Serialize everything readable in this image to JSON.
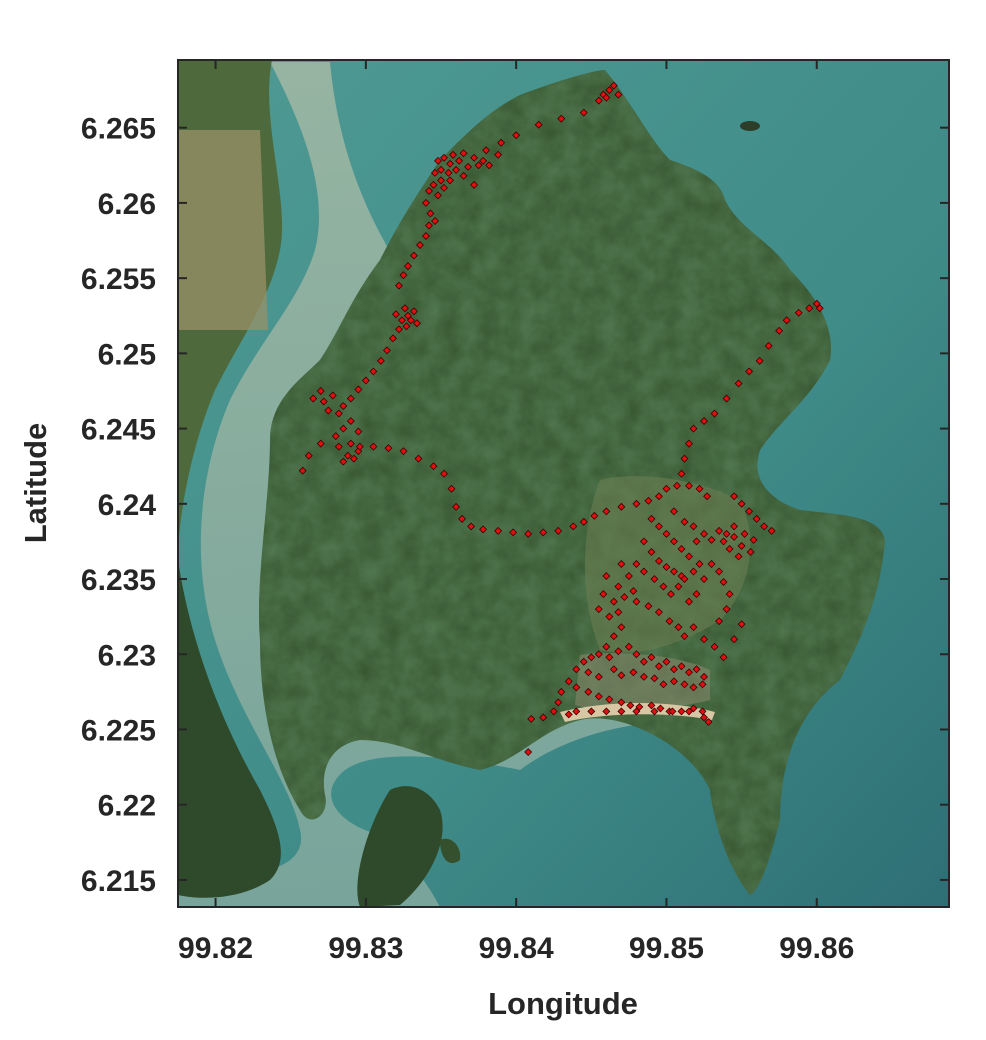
{
  "chart_data": {
    "type": "scatter",
    "title": "",
    "xlabel": "Longitude",
    "ylabel": "Latitude",
    "xlim": [
      99.8175,
      99.8688
    ],
    "ylim": [
      6.2132,
      6.2695
    ],
    "x_ticks": [
      99.82,
      99.83,
      99.84,
      99.85,
      99.86
    ],
    "x_tick_labels": [
      "99.82",
      "99.83",
      "99.84",
      "99.85",
      "99.86"
    ],
    "y_ticks": [
      6.215,
      6.22,
      6.225,
      6.23,
      6.235,
      6.24,
      6.245,
      6.25,
      6.255,
      6.26,
      6.265
    ],
    "y_tick_labels": [
      "6.215",
      "6.22",
      "6.225",
      "6.23",
      "6.235",
      "6.24",
      "6.245",
      "6.25",
      "6.255",
      "6.26",
      "6.265"
    ],
    "grid": false,
    "background": "satellite imagery",
    "marker": {
      "shape": "diamond",
      "fill": "#e01010",
      "edge": "#3a0000"
    },
    "series": [
      {
        "points": [
          [
            99.8465,
            6.2678
          ],
          [
            99.8462,
            6.2675
          ],
          [
            99.8458,
            6.2672
          ],
          [
            99.8455,
            6.2668
          ],
          [
            99.8468,
            6.2672
          ],
          [
            99.846,
            6.267
          ],
          [
            99.8445,
            6.266
          ],
          [
            99.843,
            6.2656
          ],
          [
            99.8415,
            6.2652
          ],
          [
            99.84,
            6.2645
          ],
          [
            99.839,
            6.264
          ],
          [
            99.838,
            6.2635
          ],
          [
            99.8372,
            6.263
          ],
          [
            99.8378,
            6.2628
          ],
          [
            99.8382,
            6.2625
          ],
          [
            99.8388,
            6.2632
          ],
          [
            99.8375,
            6.2625
          ],
          [
            99.8365,
            6.2633
          ],
          [
            99.8358,
            6.2632
          ],
          [
            99.8352,
            6.263
          ],
          [
            99.8348,
            6.2628
          ],
          [
            99.8356,
            6.2626
          ],
          [
            99.8362,
            6.2628
          ],
          [
            99.835,
            6.2622
          ],
          [
            99.8346,
            6.262
          ],
          [
            99.8355,
            6.262
          ],
          [
            99.836,
            6.2622
          ],
          [
            99.8368,
            6.2624
          ],
          [
            99.835,
            6.2615
          ],
          [
            99.8345,
            6.2612
          ],
          [
            99.8356,
            6.2615
          ],
          [
            99.8342,
            6.2608
          ],
          [
            99.8348,
            6.2605
          ],
          [
            99.8352,
            6.261
          ],
          [
            99.8365,
            6.2618
          ],
          [
            99.8372,
            6.2612
          ],
          [
            99.834,
            6.26
          ],
          [
            99.8343,
            6.2593
          ],
          [
            99.8346,
            6.2588
          ],
          [
            99.8342,
            6.2585
          ],
          [
            99.834,
            6.2578
          ],
          [
            99.8336,
            6.2572
          ],
          [
            99.8332,
            6.2565
          ],
          [
            99.8328,
            6.2558
          ],
          [
            99.8325,
            6.2552
          ],
          [
            99.8322,
            6.2545
          ],
          [
            99.8326,
            6.253
          ],
          [
            99.8328,
            6.2525
          ],
          [
            99.833,
            6.2522
          ],
          [
            99.8324,
            6.2522
          ],
          [
            99.832,
            6.2526
          ],
          [
            99.8332,
            6.2528
          ],
          [
            99.8334,
            6.252
          ],
          [
            99.8327,
            6.2518
          ],
          [
            99.8322,
            6.2516
          ],
          [
            99.8318,
            6.251
          ],
          [
            99.8314,
            6.2502
          ],
          [
            99.831,
            6.2495
          ],
          [
            99.8305,
            6.2488
          ],
          [
            99.83,
            6.2482
          ],
          [
            99.8295,
            6.2476
          ],
          [
            99.829,
            6.247
          ],
          [
            99.8285,
            6.2465
          ],
          [
            99.8282,
            6.246
          ],
          [
            99.8278,
            6.2472
          ],
          [
            99.8272,
            6.2468
          ],
          [
            99.827,
            6.2475
          ],
          [
            99.8265,
            6.247
          ],
          [
            99.8275,
            6.2462
          ],
          [
            99.829,
            6.2455
          ],
          [
            99.8295,
            6.2448
          ],
          [
            99.8285,
            6.245
          ],
          [
            99.828,
            6.2445
          ],
          [
            99.829,
            6.244
          ],
          [
            99.8295,
            6.2435
          ],
          [
            99.8288,
            6.2432
          ],
          [
            99.8282,
            6.2438
          ],
          [
            99.827,
            6.244
          ],
          [
            99.8262,
            6.2432
          ],
          [
            99.8258,
            6.2422
          ],
          [
            99.8285,
            6.2428
          ],
          [
            99.8292,
            6.243
          ],
          [
            99.8296,
            6.2438
          ],
          [
            99.8305,
            6.2438
          ],
          [
            99.8315,
            6.2437
          ],
          [
            99.8325,
            6.2435
          ],
          [
            99.8335,
            6.243
          ],
          [
            99.8345,
            6.2425
          ],
          [
            99.8352,
            6.242
          ],
          [
            99.8357,
            6.241
          ],
          [
            99.836,
            6.2398
          ],
          [
            99.8364,
            6.239
          ],
          [
            99.837,
            6.2385
          ],
          [
            99.8378,
            6.2383
          ],
          [
            99.8388,
            6.2382
          ],
          [
            99.8398,
            6.2381
          ],
          [
            99.8408,
            6.238
          ],
          [
            99.8418,
            6.2381
          ],
          [
            99.8428,
            6.2382
          ],
          [
            99.8438,
            6.2385
          ],
          [
            99.8445,
            6.2388
          ],
          [
            99.8452,
            6.2392
          ],
          [
            99.846,
            6.2395
          ],
          [
            99.847,
            6.2398
          ],
          [
            99.848,
            6.24
          ],
          [
            99.8488,
            6.2402
          ],
          [
            99.8495,
            6.2405
          ],
          [
            99.85,
            6.241
          ],
          [
            99.8507,
            6.2412
          ],
          [
            99.8515,
            6.2412
          ],
          [
            99.8522,
            6.241
          ],
          [
            99.8527,
            6.2405
          ],
          [
            99.851,
            6.242
          ],
          [
            99.8512,
            6.243
          ],
          [
            99.8515,
            6.244
          ],
          [
            99.8518,
            6.245
          ],
          [
            99.8525,
            6.2455
          ],
          [
            99.8532,
            6.246
          ],
          [
            99.854,
            6.247
          ],
          [
            99.8548,
            6.248
          ],
          [
            99.8555,
            6.2488
          ],
          [
            99.8562,
            6.2495
          ],
          [
            99.8568,
            6.2505
          ],
          [
            99.8575,
            6.2515
          ],
          [
            99.858,
            6.2522
          ],
          [
            99.8588,
            6.2527
          ],
          [
            99.8595,
            6.253
          ],
          [
            99.86,
            6.2533
          ],
          [
            99.8602,
            6.253
          ],
          [
            99.8545,
            6.2405
          ],
          [
            99.855,
            6.24
          ],
          [
            99.8555,
            6.2395
          ],
          [
            99.856,
            6.239
          ],
          [
            99.8565,
            6.2385
          ],
          [
            99.857,
            6.2382
          ],
          [
            99.8545,
            6.2385
          ],
          [
            99.854,
            6.238
          ],
          [
            99.8538,
            6.2375
          ],
          [
            99.8545,
            6.2378
          ],
          [
            99.855,
            6.2372
          ],
          [
            99.8542,
            6.237
          ],
          [
            99.8535,
            6.2382
          ],
          [
            99.853,
            6.2376
          ],
          [
            99.8548,
            6.2365
          ],
          [
            99.8556,
            6.2368
          ],
          [
            99.8552,
            6.238
          ],
          [
            99.8558,
            6.2376
          ],
          [
            99.849,
            6.239
          ],
          [
            99.8495,
            6.2385
          ],
          [
            99.85,
            6.238
          ],
          [
            99.8505,
            6.2375
          ],
          [
            99.851,
            6.237
          ],
          [
            99.8515,
            6.2365
          ],
          [
            99.8485,
            6.2375
          ],
          [
            99.849,
            6.2368
          ],
          [
            99.8495,
            6.2362
          ],
          [
            99.85,
            6.2358
          ],
          [
            99.8505,
            6.2355
          ],
          [
            99.851,
            6.2352
          ],
          [
            99.848,
            6.236
          ],
          [
            99.8485,
            6.2355
          ],
          [
            99.8492,
            6.235
          ],
          [
            99.8498,
            6.2345
          ],
          [
            99.8503,
            6.234
          ],
          [
            99.8508,
            6.2345
          ],
          [
            99.8512,
            6.235
          ],
          [
            99.8518,
            6.2355
          ],
          [
            99.8522,
            6.236
          ],
          [
            99.8525,
            6.235
          ],
          [
            99.852,
            6.234
          ],
          [
            99.8515,
            6.2335
          ],
          [
            99.852,
            6.2375
          ],
          [
            99.8525,
            6.238
          ],
          [
            99.8505,
            6.2395
          ],
          [
            99.8512,
            6.2388
          ],
          [
            99.8518,
            6.2385
          ],
          [
            99.853,
            6.236
          ],
          [
            99.8535,
            6.2355
          ],
          [
            99.8538,
            6.2348
          ],
          [
            99.8542,
            6.234
          ],
          [
            99.854,
            6.233
          ],
          [
            99.8535,
            6.2322
          ],
          [
            99.847,
            6.236
          ],
          [
            99.8475,
            6.2352
          ],
          [
            99.8468,
            6.2345
          ],
          [
            99.8472,
            6.2338
          ],
          [
            99.8478,
            6.2342
          ],
          [
            99.8465,
            6.2335
          ],
          [
            99.846,
            6.2352
          ],
          [
            99.8458,
            6.234
          ],
          [
            99.8455,
            6.233
          ],
          [
            99.8462,
            6.2325
          ],
          [
            99.8468,
            6.2328
          ],
          [
            99.848,
            6.2335
          ],
          [
            99.8488,
            6.2332
          ],
          [
            99.8495,
            6.2328
          ],
          [
            99.8502,
            6.2322
          ],
          [
            99.8508,
            6.2318
          ],
          [
            99.8512,
            6.2312
          ],
          [
            99.8518,
            6.2318
          ],
          [
            99.8525,
            6.231
          ],
          [
            99.8532,
            6.2305
          ],
          [
            99.8538,
            6.2298
          ],
          [
            99.8545,
            6.231
          ],
          [
            99.855,
            6.232
          ],
          [
            99.847,
            6.2318
          ],
          [
            99.8465,
            6.2312
          ],
          [
            99.846,
            6.2305
          ],
          [
            99.8455,
            6.23
          ],
          [
            99.845,
            6.2298
          ],
          [
            99.8445,
            6.2295
          ],
          [
            99.8462,
            6.2298
          ],
          [
            99.8468,
            6.2302
          ],
          [
            99.8475,
            6.2305
          ],
          [
            99.848,
            6.23
          ],
          [
            99.8485,
            6.2295
          ],
          [
            99.849,
            6.2298
          ],
          [
            99.8495,
            6.2292
          ],
          [
            99.85,
            6.2295
          ],
          [
            99.8505,
            6.229
          ],
          [
            99.851,
            6.2292
          ],
          [
            99.8515,
            6.2288
          ],
          [
            99.852,
            6.229
          ],
          [
            99.8525,
            6.2285
          ],
          [
            99.8465,
            6.229
          ],
          [
            99.847,
            6.2286
          ],
          [
            99.8478,
            6.2288
          ],
          [
            99.8485,
            6.2285
          ],
          [
            99.8492,
            6.2284
          ],
          [
            99.8498,
            6.228
          ],
          [
            99.8505,
            6.2282
          ],
          [
            99.8512,
            6.228
          ],
          [
            99.8518,
            6.2278
          ],
          [
            99.8524,
            6.228
          ],
          [
            99.8455,
            6.2285
          ],
          [
            99.8448,
            6.2288
          ],
          [
            99.844,
            6.229
          ],
          [
            99.8435,
            6.2282
          ],
          [
            99.843,
            6.2275
          ],
          [
            99.8428,
            6.2268
          ],
          [
            99.844,
            6.2278
          ],
          [
            99.8448,
            6.2275
          ],
          [
            99.8455,
            6.2272
          ],
          [
            99.8462,
            6.227
          ],
          [
            99.847,
            6.2268
          ],
          [
            99.8476,
            6.2266
          ],
          [
            99.8482,
            6.2265
          ],
          [
            99.849,
            6.2266
          ],
          [
            99.8496,
            6.2264
          ],
          [
            99.8502,
            6.2262
          ],
          [
            99.851,
            6.2262
          ],
          [
            99.8518,
            6.2264
          ],
          [
            99.8524,
            6.2262
          ],
          [
            99.8528,
            6.2255
          ],
          [
            99.8525,
            6.2258
          ],
          [
            99.844,
            6.2262
          ],
          [
            99.845,
            6.2262
          ],
          [
            99.846,
            6.2262
          ],
          [
            99.847,
            6.2262
          ],
          [
            99.848,
            6.2262
          ],
          [
            99.8492,
            6.2262
          ],
          [
            99.8504,
            6.2262
          ],
          [
            99.8515,
            6.2262
          ],
          [
            99.8435,
            6.226
          ],
          [
            99.8425,
            6.2262
          ],
          [
            99.8418,
            6.2258
          ],
          [
            99.841,
            6.2257
          ],
          [
            99.8408,
            6.2235
          ]
        ]
      }
    ]
  }
}
